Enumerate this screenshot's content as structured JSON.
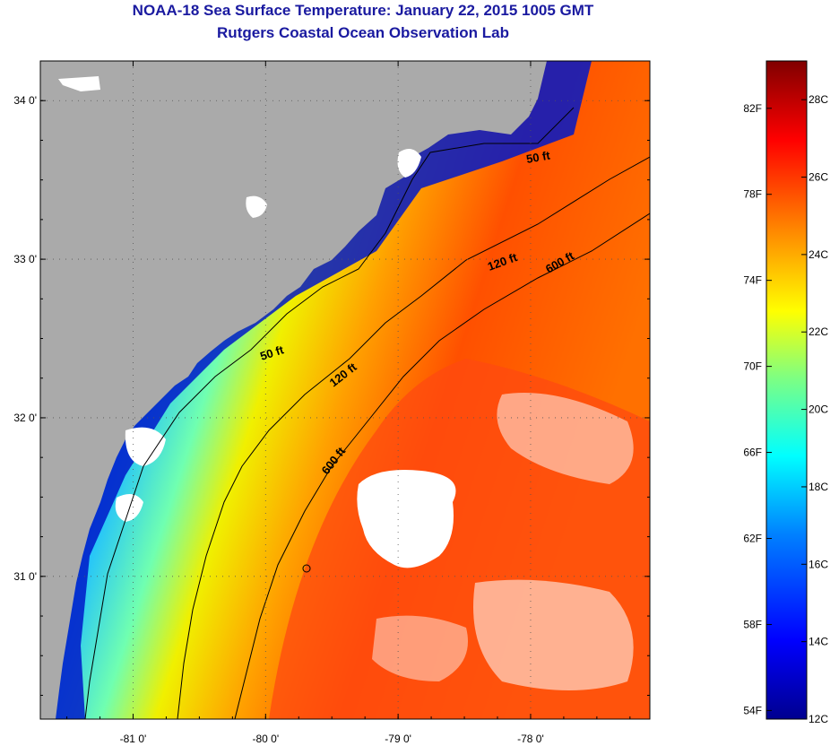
{
  "title": {
    "line1": "NOAA-18 Sea Surface Temperature:  January 22, 2015 1005 GMT",
    "line2": "Rutgers Coastal Ocean Observation Lab"
  },
  "map": {
    "lon_range": [
      -81.7,
      -77.1
    ],
    "lat_range": [
      30.1,
      34.25
    ],
    "lon_ticks": [
      {
        "value": -81,
        "label": "-81 0'"
      },
      {
        "value": -80,
        "label": "-80 0'"
      },
      {
        "value": -79,
        "label": "-79 0'"
      },
      {
        "value": -78,
        "label": "-78 0'"
      }
    ],
    "lat_ticks": [
      {
        "value": 34,
        "label": "34 0'"
      },
      {
        "value": 33,
        "label": "33 0'"
      },
      {
        "value": 32,
        "label": "32 0'"
      },
      {
        "value": 31,
        "label": "31 0'"
      }
    ],
    "contours": [
      {
        "label": "50 ft"
      },
      {
        "label": "120 ft"
      },
      {
        "label": "600 ft"
      },
      {
        "label": "50 ft"
      },
      {
        "label": "120 ft"
      },
      {
        "label": "600 ft"
      }
    ],
    "colors": {
      "land": "#aaaaaa",
      "cloud": "#ffffff",
      "bathymetry_line": "#000000"
    }
  },
  "colorbar": {
    "f_labels": [
      "82F",
      "78F",
      "74F",
      "70F",
      "66F",
      "62F",
      "58F",
      "54F"
    ],
    "c_labels": [
      "28C",
      "26C",
      "24C",
      "22C",
      "20C",
      "18C",
      "16C",
      "14C",
      "12C"
    ],
    "f_values": [
      82,
      78,
      74,
      70,
      66,
      62,
      58,
      54
    ],
    "c_values": [
      28,
      26,
      24,
      22,
      20,
      18,
      16,
      14,
      12
    ],
    "range_c": [
      12,
      29
    ],
    "colormap": [
      "#00008f",
      "#0000ff",
      "#0080ff",
      "#00ffff",
      "#80ff80",
      "#ffff00",
      "#ff8000",
      "#ff0000",
      "#800000"
    ]
  }
}
